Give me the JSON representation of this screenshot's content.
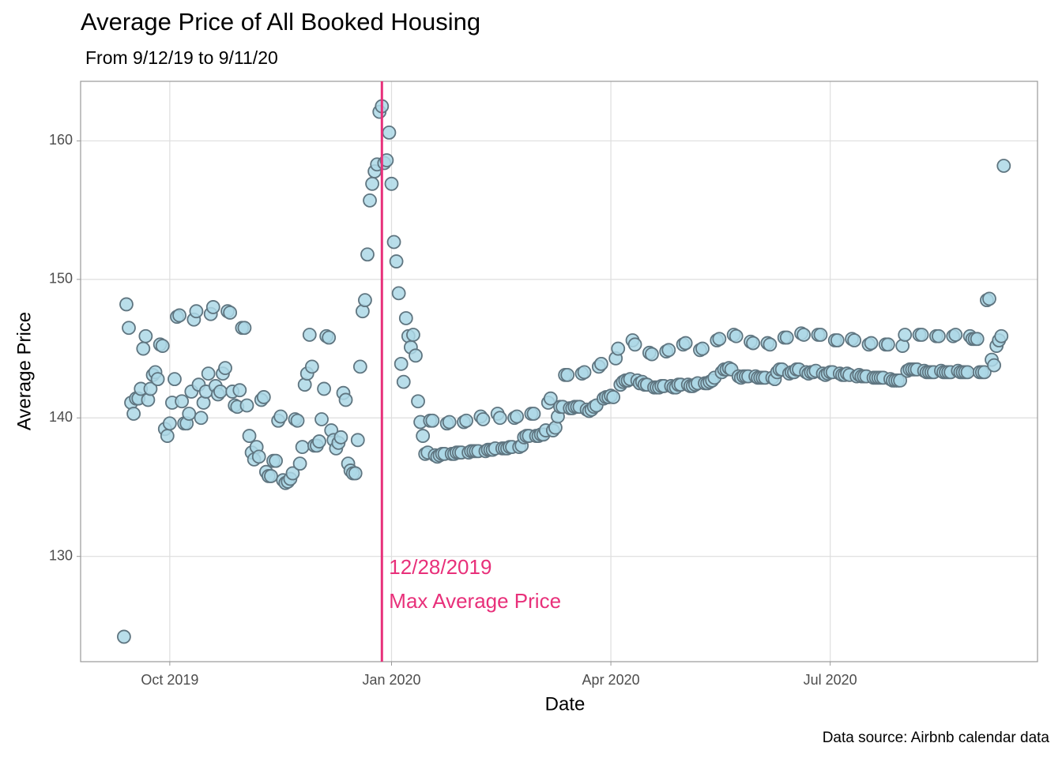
{
  "chart_data": {
    "type": "scatter",
    "title": "Average Price of All Booked Housing",
    "subtitle": "From 9/12/19 to 9/11/20",
    "x_label": "Date",
    "y_label": "Average Price",
    "caption": "Data source: Airbnb calendar data",
    "x": [
      "2019-09-12",
      "2019-09-13",
      "2019-09-14",
      "2019-09-15",
      "2019-09-16",
      "2019-09-17",
      "2019-09-18",
      "2019-09-19",
      "2019-09-20",
      "2019-09-21",
      "2019-09-22",
      "2019-09-23",
      "2019-09-24",
      "2019-09-25",
      "2019-09-26",
      "2019-09-27",
      "2019-09-28",
      "2019-09-29",
      "2019-09-30",
      "2019-10-01",
      "2019-10-02",
      "2019-10-03",
      "2019-10-04",
      "2019-10-05",
      "2019-10-06",
      "2019-10-07",
      "2019-10-08",
      "2019-10-09",
      "2019-10-10",
      "2019-10-11",
      "2019-10-12",
      "2019-10-13",
      "2019-10-14",
      "2019-10-15",
      "2019-10-16",
      "2019-10-17",
      "2019-10-18",
      "2019-10-19",
      "2019-10-20",
      "2019-10-21",
      "2019-10-22",
      "2019-10-23",
      "2019-10-24",
      "2019-10-25",
      "2019-10-26",
      "2019-10-27",
      "2019-10-28",
      "2019-10-29",
      "2019-10-30",
      "2019-10-31",
      "2019-11-01",
      "2019-11-02",
      "2019-11-03",
      "2019-11-04",
      "2019-11-05",
      "2019-11-06",
      "2019-11-07",
      "2019-11-08",
      "2019-11-09",
      "2019-11-10",
      "2019-11-11",
      "2019-11-12",
      "2019-11-13",
      "2019-11-14",
      "2019-11-15",
      "2019-11-16",
      "2019-11-17",
      "2019-11-18",
      "2019-11-19",
      "2019-11-20",
      "2019-11-21",
      "2019-11-22",
      "2019-11-23",
      "2019-11-24",
      "2019-11-25",
      "2019-11-26",
      "2019-11-27",
      "2019-11-28",
      "2019-11-29",
      "2019-11-30",
      "2019-12-01",
      "2019-12-02",
      "2019-12-03",
      "2019-12-04",
      "2019-12-05",
      "2019-12-06",
      "2019-12-07",
      "2019-12-08",
      "2019-12-09",
      "2019-12-10",
      "2019-12-11",
      "2019-12-12",
      "2019-12-13",
      "2019-12-14",
      "2019-12-15",
      "2019-12-16",
      "2019-12-17",
      "2019-12-18",
      "2019-12-19",
      "2019-12-20",
      "2019-12-21",
      "2019-12-22",
      "2019-12-23",
      "2019-12-24",
      "2019-12-25",
      "2019-12-26",
      "2019-12-27",
      "2019-12-28",
      "2019-12-29",
      "2019-12-30",
      "2019-12-31",
      "2020-01-01",
      "2020-01-02",
      "2020-01-03",
      "2020-01-04",
      "2020-01-05",
      "2020-01-06",
      "2020-01-07",
      "2020-01-08",
      "2020-01-09",
      "2020-01-10",
      "2020-01-11",
      "2020-01-12",
      "2020-01-13",
      "2020-01-14",
      "2020-01-15",
      "2020-01-16",
      "2020-01-17",
      "2020-01-18",
      "2020-01-19",
      "2020-01-20",
      "2020-01-21",
      "2020-01-22",
      "2020-01-23",
      "2020-01-24",
      "2020-01-25",
      "2020-01-26",
      "2020-01-27",
      "2020-01-28",
      "2020-01-29",
      "2020-01-30",
      "2020-01-31",
      "2020-02-01",
      "2020-02-02",
      "2020-02-03",
      "2020-02-04",
      "2020-02-05",
      "2020-02-06",
      "2020-02-07",
      "2020-02-08",
      "2020-02-09",
      "2020-02-10",
      "2020-02-11",
      "2020-02-12",
      "2020-02-13",
      "2020-02-14",
      "2020-02-15",
      "2020-02-16",
      "2020-02-17",
      "2020-02-18",
      "2020-02-19",
      "2020-02-20",
      "2020-02-21",
      "2020-02-22",
      "2020-02-23",
      "2020-02-24",
      "2020-02-25",
      "2020-02-26",
      "2020-02-27",
      "2020-02-28",
      "2020-02-29",
      "2020-03-01",
      "2020-03-02",
      "2020-03-03",
      "2020-03-04",
      "2020-03-05",
      "2020-03-06",
      "2020-03-07",
      "2020-03-08",
      "2020-03-09",
      "2020-03-10",
      "2020-03-11",
      "2020-03-12",
      "2020-03-13",
      "2020-03-14",
      "2020-03-15",
      "2020-03-16",
      "2020-03-17",
      "2020-03-18",
      "2020-03-19",
      "2020-03-20",
      "2020-03-21",
      "2020-03-22",
      "2020-03-23",
      "2020-03-24",
      "2020-03-25",
      "2020-03-26",
      "2020-03-27",
      "2020-03-28",
      "2020-03-29",
      "2020-03-30",
      "2020-03-31",
      "2020-04-01",
      "2020-04-02",
      "2020-04-03",
      "2020-04-04",
      "2020-04-05",
      "2020-04-06",
      "2020-04-07",
      "2020-04-08",
      "2020-04-09",
      "2020-04-10",
      "2020-04-11",
      "2020-04-12",
      "2020-04-13",
      "2020-04-14",
      "2020-04-15",
      "2020-04-16",
      "2020-04-17",
      "2020-04-18",
      "2020-04-19",
      "2020-04-20",
      "2020-04-21",
      "2020-04-22",
      "2020-04-23",
      "2020-04-24",
      "2020-04-25",
      "2020-04-26",
      "2020-04-27",
      "2020-04-28",
      "2020-04-29",
      "2020-04-30",
      "2020-05-01",
      "2020-05-02",
      "2020-05-03",
      "2020-05-04",
      "2020-05-05",
      "2020-05-06",
      "2020-05-07",
      "2020-05-08",
      "2020-05-09",
      "2020-05-10",
      "2020-05-11",
      "2020-05-12",
      "2020-05-13",
      "2020-05-14",
      "2020-05-15",
      "2020-05-16",
      "2020-05-17",
      "2020-05-18",
      "2020-05-19",
      "2020-05-20",
      "2020-05-21",
      "2020-05-22",
      "2020-05-23",
      "2020-05-24",
      "2020-05-25",
      "2020-05-26",
      "2020-05-27",
      "2020-05-28",
      "2020-05-29",
      "2020-05-30",
      "2020-05-31",
      "2020-06-01",
      "2020-06-02",
      "2020-06-03",
      "2020-06-04",
      "2020-06-05",
      "2020-06-06",
      "2020-06-07",
      "2020-06-08",
      "2020-06-09",
      "2020-06-10",
      "2020-06-11",
      "2020-06-12",
      "2020-06-13",
      "2020-06-14",
      "2020-06-15",
      "2020-06-16",
      "2020-06-17",
      "2020-06-18",
      "2020-06-19",
      "2020-06-20",
      "2020-06-21",
      "2020-06-22",
      "2020-06-23",
      "2020-06-24",
      "2020-06-25",
      "2020-06-26",
      "2020-06-27",
      "2020-06-28",
      "2020-06-29",
      "2020-06-30",
      "2020-07-01",
      "2020-07-02",
      "2020-07-03",
      "2020-07-04",
      "2020-07-05",
      "2020-07-06",
      "2020-07-07",
      "2020-07-08",
      "2020-07-09",
      "2020-07-10",
      "2020-07-11",
      "2020-07-12",
      "2020-07-13",
      "2020-07-14",
      "2020-07-15",
      "2020-07-16",
      "2020-07-17",
      "2020-07-18",
      "2020-07-19",
      "2020-07-20",
      "2020-07-21",
      "2020-07-22",
      "2020-07-23",
      "2020-07-24",
      "2020-07-25",
      "2020-07-26",
      "2020-07-27",
      "2020-07-28",
      "2020-07-29",
      "2020-07-30",
      "2020-07-31",
      "2020-08-01",
      "2020-08-02",
      "2020-08-03",
      "2020-08-04",
      "2020-08-05",
      "2020-08-06",
      "2020-08-07",
      "2020-08-08",
      "2020-08-09",
      "2020-08-10",
      "2020-08-11",
      "2020-08-12",
      "2020-08-13",
      "2020-08-14",
      "2020-08-15",
      "2020-08-16",
      "2020-08-17",
      "2020-08-18",
      "2020-08-19",
      "2020-08-20",
      "2020-08-21",
      "2020-08-22",
      "2020-08-23",
      "2020-08-24",
      "2020-08-25",
      "2020-08-26",
      "2020-08-27",
      "2020-08-28",
      "2020-08-29",
      "2020-08-30",
      "2020-08-31",
      "2020-09-01",
      "2020-09-02",
      "2020-09-03",
      "2020-09-04",
      "2020-09-05",
      "2020-09-06",
      "2020-09-07",
      "2020-09-08",
      "2020-09-09",
      "2020-09-10",
      "2020-09-11"
    ],
    "values": [
      124.2,
      148.2,
      146.5,
      141.1,
      140.3,
      141.4,
      141.4,
      142.1,
      145.0,
      145.9,
      141.3,
      142.1,
      143.1,
      143.3,
      142.8,
      145.3,
      145.2,
      139.2,
      138.7,
      139.6,
      141.1,
      142.8,
      147.3,
      147.4,
      141.2,
      139.6,
      139.6,
      140.3,
      141.9,
      147.1,
      147.7,
      142.4,
      140.0,
      141.1,
      141.9,
      143.2,
      147.5,
      148.0,
      142.3,
      141.7,
      141.9,
      143.2,
      143.6,
      147.7,
      147.6,
      141.9,
      140.9,
      140.8,
      142.0,
      146.5,
      146.5,
      140.9,
      138.7,
      137.5,
      137.0,
      137.9,
      137.2,
      141.3,
      141.5,
      136.1,
      135.8,
      135.8,
      136.9,
      136.9,
      139.8,
      140.1,
      135.5,
      135.3,
      135.4,
      135.6,
      136.0,
      139.9,
      139.8,
      136.7,
      137.9,
      142.4,
      143.2,
      146.0,
      143.7,
      138.0,
      138.0,
      138.3,
      139.9,
      142.1,
      145.9,
      145.8,
      139.1,
      138.4,
      137.8,
      138.2,
      138.6,
      141.8,
      141.3,
      136.7,
      136.2,
      136.0,
      136.0,
      138.4,
      143.7,
      147.7,
      148.5,
      151.8,
      155.7,
      156.9,
      157.8,
      158.3,
      162.1,
      162.5,
      158.4,
      158.6,
      160.6,
      156.9,
      152.7,
      151.3,
      149.0,
      143.9,
      142.6,
      147.2,
      145.9,
      145.1,
      146.0,
      144.5,
      141.2,
      139.7,
      138.7,
      137.4,
      137.5,
      139.8,
      139.8,
      137.3,
      137.2,
      137.3,
      137.4,
      137.4,
      139.6,
      139.7,
      137.4,
      137.4,
      137.5,
      137.5,
      137.5,
      139.7,
      139.8,
      137.5,
      137.6,
      137.6,
      137.6,
      137.6,
      140.1,
      139.9,
      137.6,
      137.7,
      137.7,
      137.7,
      137.8,
      140.3,
      140.0,
      137.8,
      137.8,
      137.8,
      137.9,
      137.9,
      140.0,
      140.1,
      137.9,
      138.0,
      138.6,
      138.7,
      138.7,
      140.3,
      140.3,
      138.7,
      138.7,
      138.8,
      138.8,
      139.1,
      141.1,
      141.4,
      139.1,
      139.3,
      140.1,
      140.8,
      140.8,
      143.1,
      143.1,
      140.7,
      140.7,
      140.8,
      140.8,
      140.8,
      143.2,
      143.3,
      140.6,
      140.5,
      140.6,
      140.8,
      140.9,
      143.7,
      143.9,
      141.4,
      141.5,
      141.5,
      141.6,
      141.5,
      144.3,
      145.0,
      142.4,
      142.6,
      142.7,
      142.7,
      142.8,
      145.6,
      145.3,
      142.7,
      142.5,
      142.6,
      142.4,
      142.4,
      144.7,
      144.6,
      142.2,
      142.2,
      142.2,
      142.3,
      142.3,
      144.8,
      144.9,
      142.3,
      142.2,
      142.2,
      142.4,
      142.4,
      145.3,
      145.4,
      142.4,
      142.3,
      142.3,
      142.4,
      142.5,
      144.9,
      145.0,
      142.5,
      142.5,
      142.6,
      142.7,
      142.9,
      145.6,
      145.7,
      143.3,
      143.5,
      143.5,
      143.6,
      143.5,
      146.0,
      145.9,
      143.0,
      142.9,
      143.0,
      143.0,
      143.0,
      145.5,
      145.4,
      143.0,
      142.9,
      142.9,
      142.9,
      142.9,
      145.4,
      145.3,
      142.9,
      142.8,
      143.3,
      143.5,
      143.5,
      145.8,
      145.8,
      143.2,
      143.3,
      143.3,
      143.5,
      143.5,
      146.1,
      146.0,
      143.3,
      143.2,
      143.3,
      143.3,
      143.4,
      146.0,
      146.0,
      143.2,
      143.1,
      143.2,
      143.3,
      143.3,
      145.6,
      145.6,
      143.2,
      143.1,
      143.1,
      143.2,
      143.1,
      145.7,
      145.6,
      143.0,
      143.1,
      143.0,
      143.0,
      143.0,
      145.3,
      145.4,
      142.9,
      142.9,
      142.9,
      142.9,
      142.9,
      145.3,
      145.3,
      142.8,
      142.7,
      142.7,
      142.7,
      142.7,
      145.2,
      146.0,
      143.4,
      143.5,
      143.5,
      143.5,
      143.5,
      146.0,
      146.0,
      143.4,
      143.3,
      143.3,
      143.3,
      143.3,
      145.9,
      145.9,
      143.4,
      143.3,
      143.3,
      143.3,
      143.3,
      145.9,
      146.0,
      143.4,
      143.3,
      143.3,
      143.3,
      143.3,
      145.9,
      145.7,
      145.7,
      145.7,
      143.3,
      143.3,
      143.3,
      148.5,
      148.6,
      144.2,
      143.8,
      145.2,
      145.6,
      145.9,
      158.2
    ],
    "color": "#add8e6",
    "edge_color": "#5f7580",
    "xlim": [
      "2019-08-25",
      "2020-09-25"
    ],
    "xticks": [
      {
        "value": "2019-10-01",
        "label": "Oct 2019"
      },
      {
        "value": "2020-01-01",
        "label": "Jan 2020"
      },
      {
        "value": "2020-04-01",
        "label": "Apr 2020"
      },
      {
        "value": "2020-07-01",
        "label": "Jul 2020"
      }
    ],
    "ylim": [
      122.4,
      164.3
    ],
    "yticks": [
      130,
      140,
      150,
      160
    ],
    "grid": true,
    "vline": {
      "x": "2019-12-28",
      "color": "#e8307a",
      "labels": [
        "12/28/2019",
        "Max Average Price"
      ]
    }
  }
}
